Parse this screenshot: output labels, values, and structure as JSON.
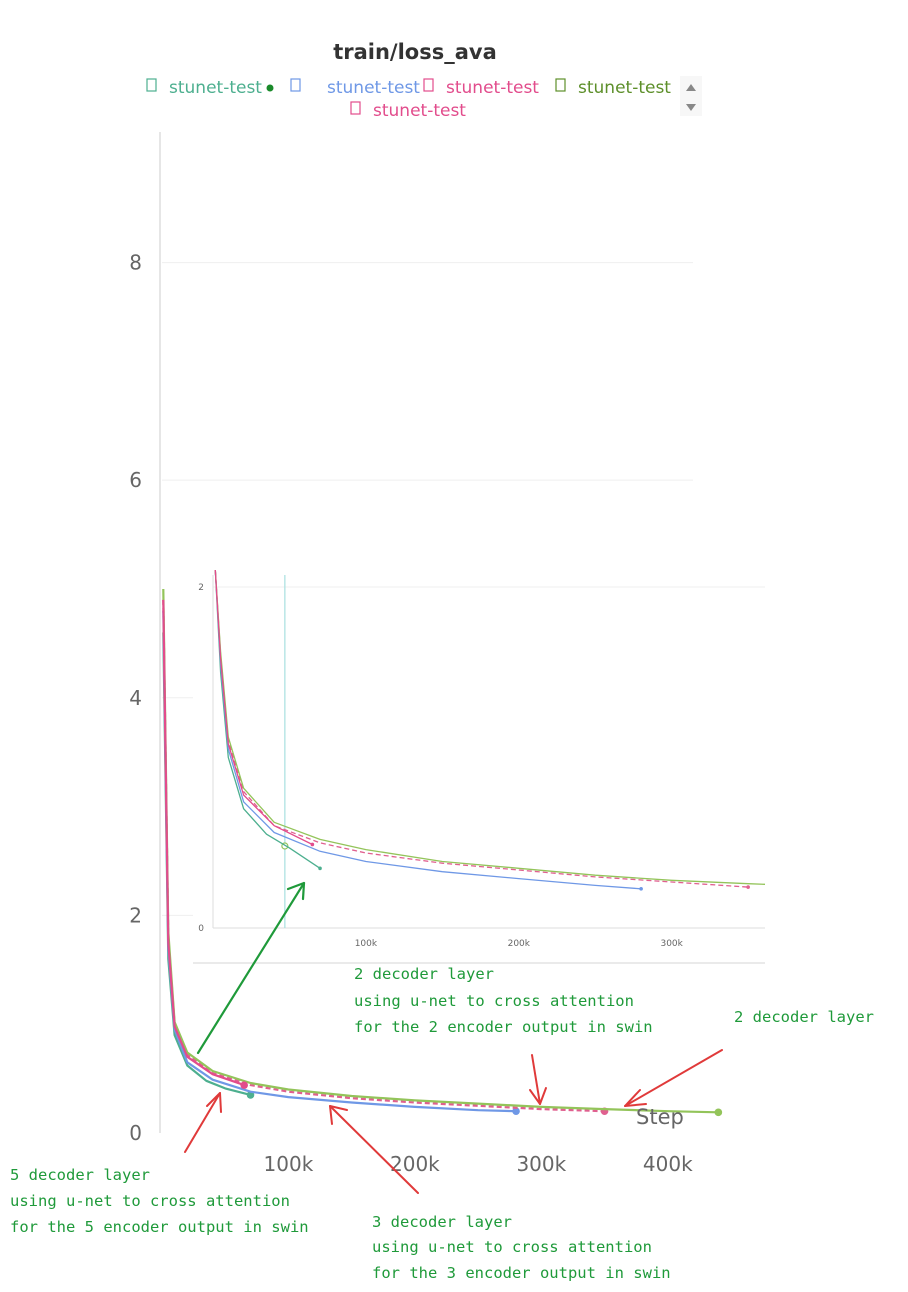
{
  "chart_data": [
    {
      "type": "line",
      "title": "train/loss_ava",
      "xlabel": "Step",
      "ylabel": "",
      "xlim": [
        0,
        450000
      ],
      "ylim": [
        0,
        9.2
      ],
      "x_ticks": [
        {
          "value": 100000,
          "label": "100k"
        },
        {
          "value": 200000,
          "label": "200k"
        },
        {
          "value": 300000,
          "label": "300k"
        },
        {
          "value": 400000,
          "label": "400k"
        }
      ],
      "y_ticks": [
        {
          "value": 0,
          "label": "0"
        },
        {
          "value": 2,
          "label": "2"
        },
        {
          "value": 4,
          "label": "4"
        },
        {
          "value": 6,
          "label": "6"
        },
        {
          "value": 8,
          "label": "8"
        }
      ],
      "grid": true,
      "legend_position": "top",
      "series": [
        {
          "name": "stunet-test",
          "color": "#4daf8f",
          "dashed": false,
          "active": true,
          "x": [
            1000,
            5000,
            10000,
            20000,
            35000,
            50000,
            70000
          ],
          "y": [
            4.6,
            1.6,
            0.9,
            0.62,
            0.48,
            0.41,
            0.35
          ]
        },
        {
          "name": "stunet-test",
          "color": "#6f98e6",
          "dashed": false,
          "active": false,
          "x": [
            1000,
            5000,
            10000,
            20000,
            40000,
            70000,
            100000,
            150000,
            200000,
            250000,
            280000
          ],
          "y": [
            4.8,
            1.7,
            0.95,
            0.65,
            0.49,
            0.38,
            0.33,
            0.28,
            0.24,
            0.21,
            0.2
          ]
        },
        {
          "name": "stunet-test",
          "color": "#e0608f",
          "dashed": true,
          "active": false,
          "x": [
            1000,
            5000,
            10000,
            20000,
            40000,
            70000,
            100000,
            150000,
            200000,
            250000,
            300000,
            350000
          ],
          "y": [
            4.9,
            1.8,
            1.0,
            0.72,
            0.55,
            0.44,
            0.38,
            0.32,
            0.28,
            0.25,
            0.22,
            0.2
          ]
        },
        {
          "name": "stunet-test",
          "color": "#93c45a",
          "dashed": false,
          "active": false,
          "x": [
            1000,
            5000,
            10000,
            20000,
            40000,
            70000,
            100000,
            150000,
            200000,
            250000,
            300000,
            350000,
            400000,
            440000
          ],
          "y": [
            5.0,
            1.85,
            1.02,
            0.74,
            0.57,
            0.46,
            0.4,
            0.34,
            0.3,
            0.27,
            0.24,
            0.22,
            0.2,
            0.19
          ]
        },
        {
          "name": "stunet-test",
          "color": "#e24c8c",
          "dashed": false,
          "active": false,
          "x": [
            1000,
            5000,
            10000,
            20000,
            40000,
            65000
          ],
          "y": [
            4.9,
            1.75,
            0.98,
            0.7,
            0.54,
            0.44
          ]
        }
      ]
    },
    {
      "type": "line",
      "title": "",
      "xlabel": "",
      "ylabel": "",
      "xlim": [
        0,
        380000
      ],
      "ylim": [
        0,
        2.1
      ],
      "x_ticks": [
        {
          "value": 100000,
          "label": "100k"
        },
        {
          "value": 200000,
          "label": "200k"
        },
        {
          "value": 300000,
          "label": "300k"
        }
      ],
      "y_ticks": [
        {
          "value": 0,
          "label": "0"
        },
        {
          "value": 2,
          "label": "2"
        }
      ],
      "grid": true,
      "hover_x": 47000,
      "series": [
        {
          "name": "stunet-test",
          "color": "#4daf8f",
          "dashed": false,
          "x": [
            1500,
            5000,
            10000,
            20000,
            35000,
            50000,
            70000
          ],
          "y": [
            2.1,
            1.5,
            1.0,
            0.7,
            0.55,
            0.47,
            0.35
          ]
        },
        {
          "name": "stunet-test",
          "color": "#6f98e6",
          "dashed": false,
          "x": [
            1500,
            5000,
            10000,
            20000,
            40000,
            70000,
            100000,
            150000,
            200000,
            250000,
            280000
          ],
          "y": [
            2.1,
            1.55,
            1.05,
            0.74,
            0.56,
            0.45,
            0.39,
            0.33,
            0.29,
            0.25,
            0.23
          ]
        },
        {
          "name": "stunet-test",
          "color": "#e0608f",
          "dashed": true,
          "x": [
            1500,
            5000,
            10000,
            20000,
            40000,
            70000,
            100000,
            150000,
            200000,
            250000,
            300000,
            350000
          ],
          "y": [
            2.1,
            1.6,
            1.1,
            0.8,
            0.6,
            0.5,
            0.44,
            0.38,
            0.34,
            0.3,
            0.27,
            0.24
          ]
        },
        {
          "name": "stunet-test",
          "color": "#93c45a",
          "dashed": false,
          "x": [
            1500,
            5000,
            10000,
            20000,
            40000,
            70000,
            100000,
            150000,
            200000,
            250000,
            300000,
            350000,
            380000
          ],
          "y": [
            2.1,
            1.62,
            1.12,
            0.82,
            0.62,
            0.52,
            0.46,
            0.39,
            0.35,
            0.31,
            0.28,
            0.26,
            0.25
          ]
        },
        {
          "name": "stunet-test",
          "color": "#e24c8c",
          "dashed": false,
          "x": [
            1500,
            5000,
            10000,
            20000,
            40000,
            65000
          ],
          "y": [
            2.1,
            1.58,
            1.08,
            0.78,
            0.6,
            0.49
          ]
        }
      ]
    }
  ],
  "legend": {
    "items": [
      {
        "label": "stunet-test",
        "color": "#4daf8f"
      },
      {
        "label": "stunet-test",
        "color": "#6f98e6"
      },
      {
        "label": "stunet-test",
        "color": "#e24c8c"
      },
      {
        "label": "stunet-test",
        "color": "#5d8f2a"
      },
      {
        "label": "stunet-test",
        "color": "#e24c8c"
      }
    ]
  },
  "annotations": [
    {
      "id": "note-2-layer-unet",
      "color": "#1f9a3a",
      "lines": [
        "2 decoder layer",
        "using u-net to cross attention",
        "for the 2 encoder output in swin"
      ]
    },
    {
      "id": "note-2-layer",
      "color": "#1f9a3a",
      "lines": [
        "2 decoder layer"
      ]
    },
    {
      "id": "note-5-layer",
      "color": "#1f9a3a",
      "lines": [
        "5 decoder layer",
        "using u-net to cross attention",
        "for the 5 encoder output in swin"
      ]
    },
    {
      "id": "note-3-layer",
      "color": "#1f9a3a",
      "lines": [
        "3 decoder layer",
        "using u-net to cross attention",
        "for the 3 encoder output in swin"
      ]
    }
  ]
}
